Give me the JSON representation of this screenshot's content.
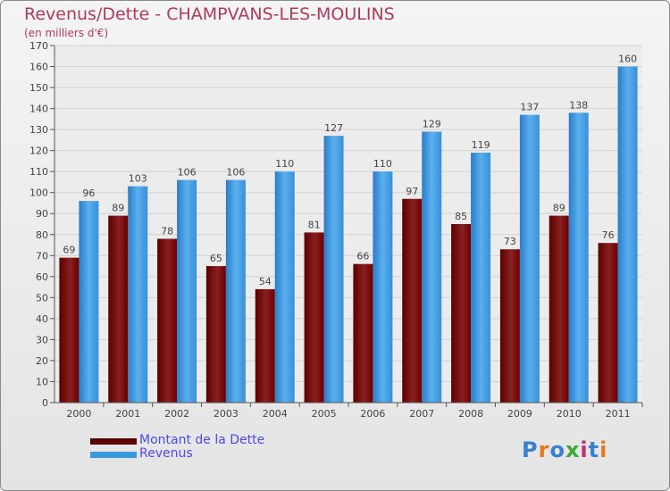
{
  "title": "Revenus/Dette - CHAMPVANS-LES-MOULINS",
  "subtitle": "(en milliers d'€)",
  "logo": {
    "text": "Proxiti",
    "colors": [
      "#3a7fd0",
      "#e8781e",
      "#3a7fd0",
      "#3aa83a",
      "#c03070",
      "#3a7fd0",
      "#e8781e"
    ]
  },
  "colors": {
    "dette": "#800000",
    "revenus": "#3a9ae0"
  },
  "legend": [
    {
      "label": "Montant de la Dette",
      "color": "#800000"
    },
    {
      "label": "Revenus",
      "color": "#3a9ae0"
    }
  ],
  "chart_data": {
    "type": "bar",
    "categories": [
      "2000",
      "2001",
      "2002",
      "2003",
      "2004",
      "2005",
      "2006",
      "2007",
      "2008",
      "2009",
      "2010",
      "2011"
    ],
    "series": [
      {
        "name": "Montant de la Dette",
        "values": [
          69,
          89,
          78,
          65,
          54,
          81,
          66,
          97,
          85,
          73,
          89,
          76
        ]
      },
      {
        "name": "Revenus",
        "values": [
          96,
          103,
          106,
          106,
          110,
          127,
          110,
          129,
          119,
          137,
          138,
          160
        ]
      }
    ],
    "ylim": [
      0,
      170
    ],
    "yticks": [
      0,
      10,
      20,
      30,
      40,
      50,
      60,
      70,
      80,
      90,
      100,
      110,
      120,
      130,
      140,
      150,
      160,
      170
    ],
    "grid": true,
    "legend_position": "bottom-left"
  }
}
